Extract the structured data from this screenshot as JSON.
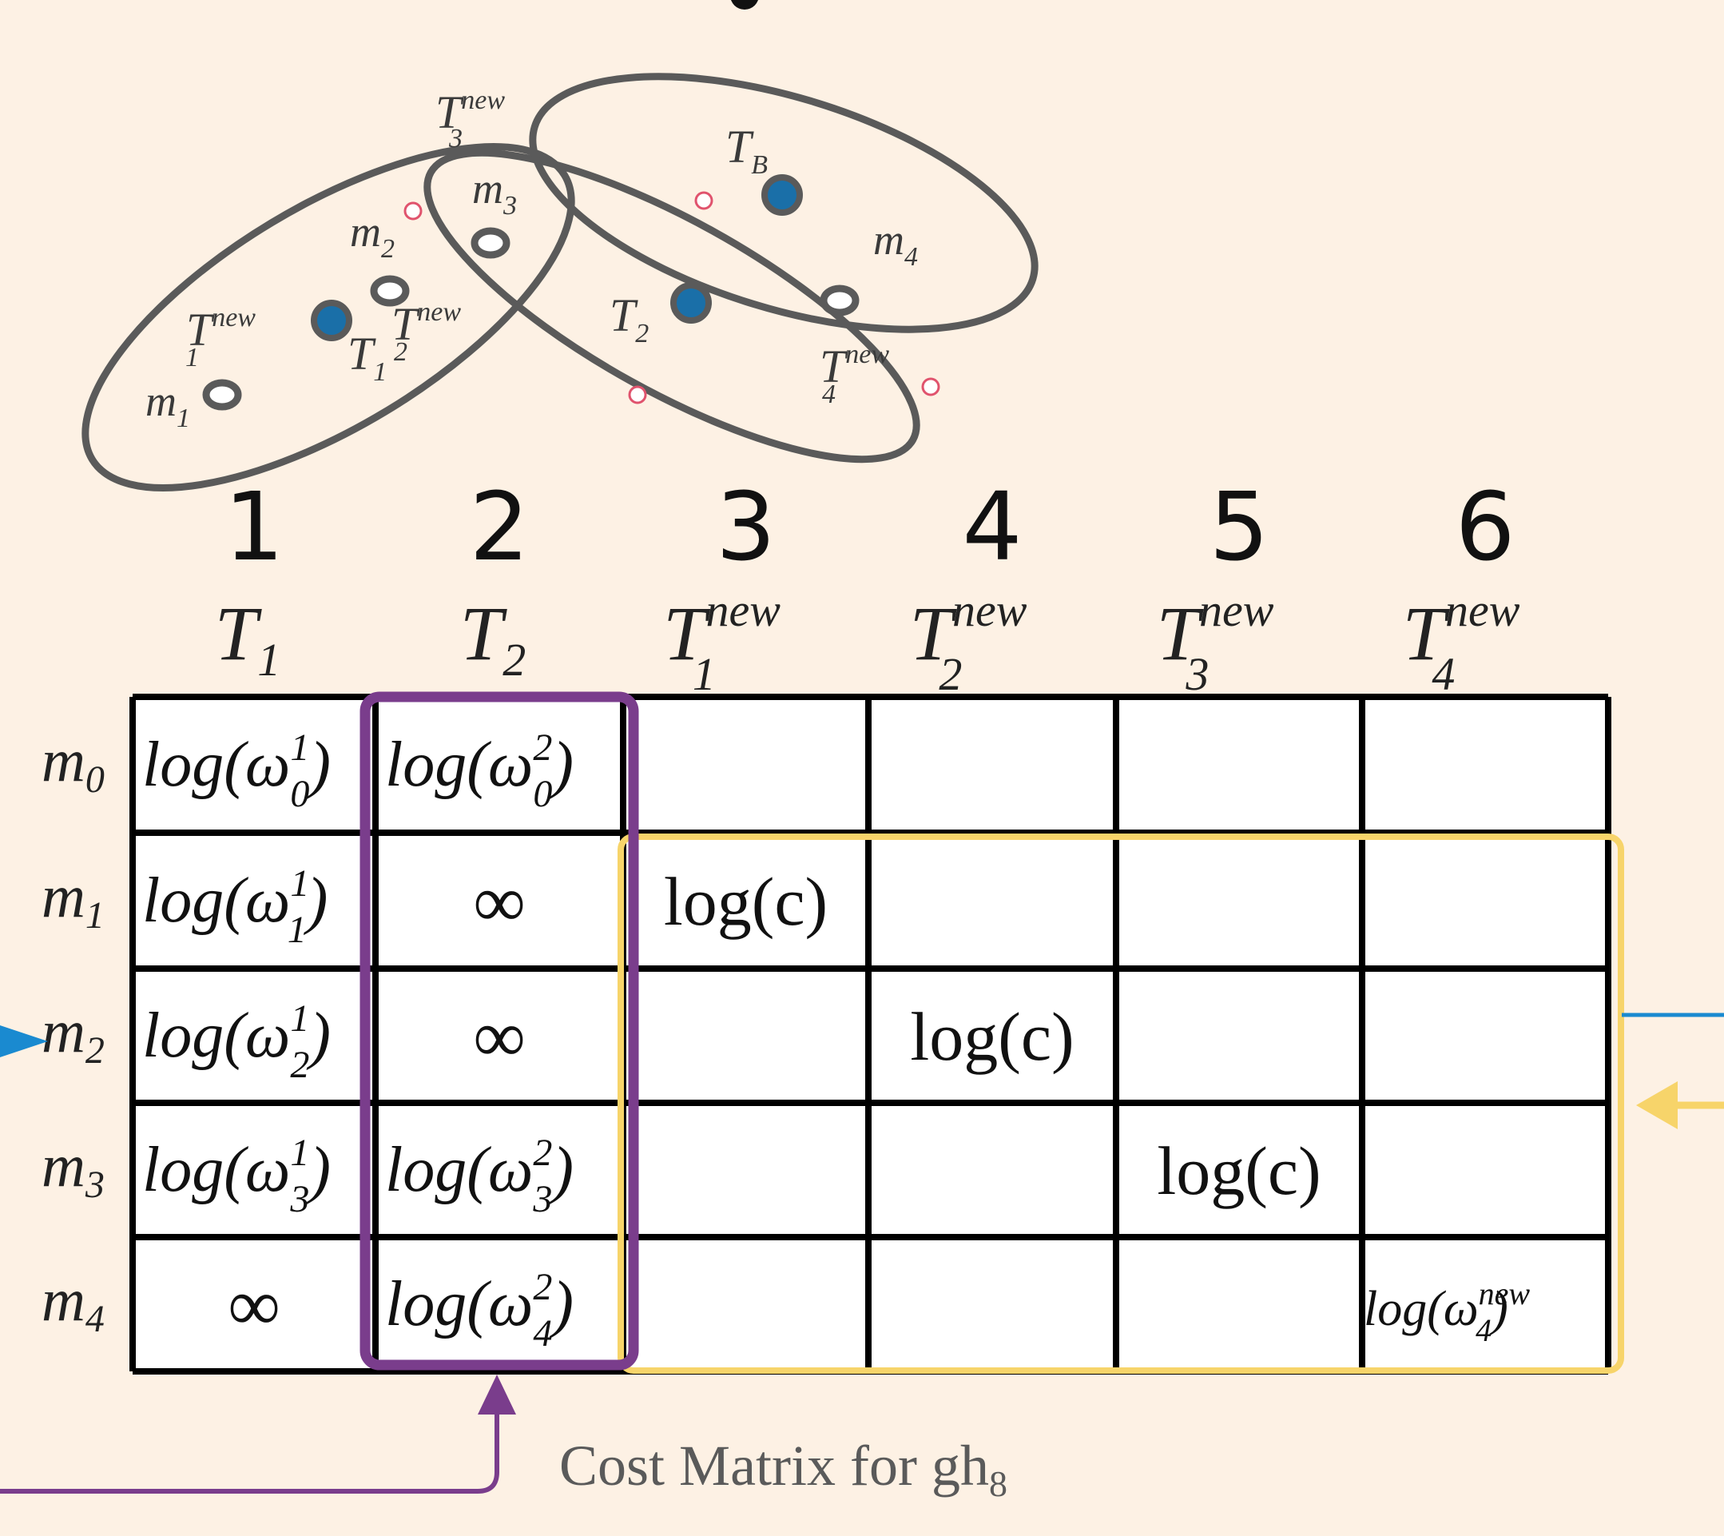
{
  "caption": {
    "text": "Cost Matrix for gh",
    "sub": "8"
  },
  "colors": {
    "background": "#fdf1e4",
    "ellipse": "#5a5a5a",
    "track_dot": "#1a6fa8",
    "sub_group": "#7a3d8c",
    "new_group": "#f7d46a",
    "blue_arrow": "#1a8ad0",
    "intersection": "#e0536d"
  },
  "scene": {
    "labels": {
      "m1": {
        "base": "m",
        "sub": "1"
      },
      "m2": {
        "base": "m",
        "sub": "2"
      },
      "m3": {
        "base": "m",
        "sub": "3"
      },
      "m4": {
        "base": "m",
        "sub": "4"
      },
      "T1": {
        "base": "T",
        "sub": "1"
      },
      "T2": {
        "base": "T",
        "sub": "2"
      },
      "TB": {
        "base": "T",
        "sub": "B"
      },
      "T1new": {
        "base": "T",
        "sub": "1",
        "sup": "new"
      },
      "T2new": {
        "base": "T",
        "sub": "2",
        "sup": "new"
      },
      "T3new": {
        "base": "T",
        "sub": "3",
        "sup": "new"
      },
      "T4new": {
        "base": "T",
        "sub": "4",
        "sup": "new"
      }
    }
  },
  "matrix": {
    "column_numbers": [
      "1",
      "2",
      "3",
      "4",
      "5",
      "6"
    ],
    "columns": [
      {
        "base": "T",
        "sub": "1",
        "sup": ""
      },
      {
        "base": "T",
        "sub": "2",
        "sup": ""
      },
      {
        "base": "T",
        "sub": "1",
        "sup": "new"
      },
      {
        "base": "T",
        "sub": "2",
        "sup": "new"
      },
      {
        "base": "T",
        "sub": "3",
        "sup": "new"
      },
      {
        "base": "T",
        "sub": "4",
        "sup": "new"
      }
    ],
    "rows": [
      {
        "base": "m",
        "sub": "0"
      },
      {
        "base": "m",
        "sub": "1"
      },
      {
        "base": "m",
        "sub": "2"
      },
      {
        "base": "m",
        "sub": "3"
      },
      {
        "base": "m",
        "sub": "4"
      }
    ],
    "cells": [
      [
        {
          "kind": "logw",
          "sub": "0",
          "sup": "1"
        },
        {
          "kind": "logw",
          "sub": "0",
          "sup": "2"
        },
        null,
        null,
        null,
        null
      ],
      [
        {
          "kind": "logw",
          "sub": "1",
          "sup": "1"
        },
        {
          "kind": "inf",
          "text": "∞"
        },
        {
          "kind": "text",
          "text": "log(c)"
        },
        null,
        null,
        null
      ],
      [
        {
          "kind": "logw",
          "sub": "2",
          "sup": "1"
        },
        {
          "kind": "inf",
          "text": "∞"
        },
        null,
        {
          "kind": "text",
          "text": "log(c)"
        },
        null,
        null
      ],
      [
        {
          "kind": "logw",
          "sub": "3",
          "sup": "1"
        },
        {
          "kind": "logw",
          "sub": "3",
          "sup": "2"
        },
        null,
        null,
        {
          "kind": "text",
          "text": "log(c)"
        },
        null
      ],
      [
        {
          "kind": "inf",
          "text": "∞"
        },
        {
          "kind": "logw",
          "sub": "4",
          "sup": "2"
        },
        null,
        null,
        null,
        {
          "kind": "logw",
          "sub": "4",
          "sup": "new"
        }
      ]
    ]
  }
}
